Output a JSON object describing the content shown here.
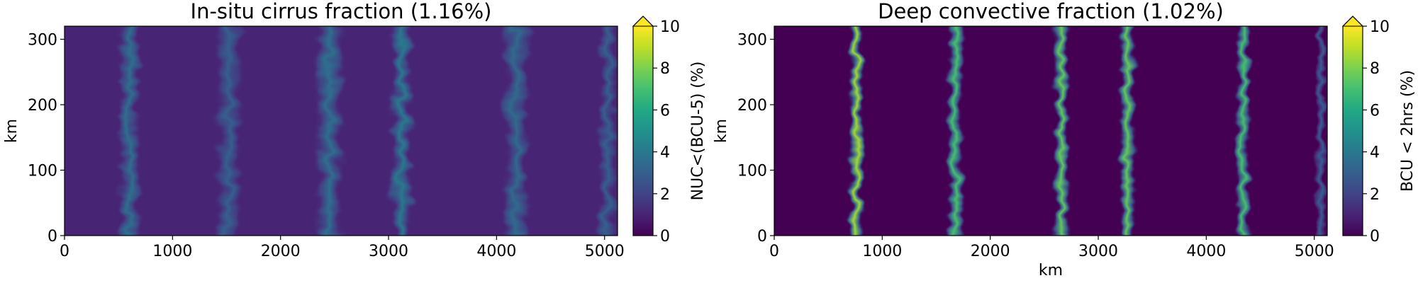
{
  "figure": {
    "name": "two-panel heatmap figure"
  },
  "chart_data": [
    {
      "type": "heatmap",
      "title": "In-situ cirrus fraction (1.16%)",
      "xlabel": "",
      "ylabel": "km",
      "xlim": [
        0,
        5120
      ],
      "ylim": [
        0,
        320
      ],
      "x_ticks": [
        0,
        1000,
        2000,
        3000,
        4000,
        5000
      ],
      "y_ticks": [
        0,
        100,
        200,
        300
      ],
      "x_tick_labels": [
        "0",
        "1000",
        "2000",
        "3000",
        "4000",
        "5000"
      ],
      "y_tick_labels": [
        "0",
        "100",
        "200",
        "300"
      ],
      "colormap": "viridis",
      "colorbar": {
        "label": "NUC<(BCU-5) (%)",
        "range": [
          0,
          10
        ],
        "extend": "max",
        "ticks": [
          0,
          2,
          4,
          6,
          8,
          10
        ],
        "tick_labels": [
          "0",
          "2",
          "4",
          "6",
          "8",
          "10"
        ]
      },
      "background_value": 1.0,
      "bands": [
        {
          "x_center": 600,
          "width": 110,
          "peak": 3.6
        },
        {
          "x_center": 1520,
          "width": 130,
          "peak": 3.0
        },
        {
          "x_center": 2450,
          "width": 140,
          "peak": 3.6
        },
        {
          "x_center": 3120,
          "width": 110,
          "peak": 4.0
        },
        {
          "x_center": 4180,
          "width": 130,
          "peak": 3.4
        },
        {
          "x_center": 5030,
          "width": 90,
          "peak": 3.0
        }
      ]
    },
    {
      "type": "heatmap",
      "title": "Deep convective fraction (1.02%)",
      "xlabel": "km",
      "ylabel": "km",
      "xlim": [
        0,
        5120
      ],
      "ylim": [
        0,
        320
      ],
      "x_ticks": [
        0,
        1000,
        2000,
        3000,
        4000,
        5000
      ],
      "y_ticks": [
        0,
        100,
        200,
        300
      ],
      "x_tick_labels": [
        "0",
        "1000",
        "2000",
        "3000",
        "4000",
        "5000"
      ],
      "y_tick_labels": [
        "0",
        "100",
        "200",
        "300"
      ],
      "colormap": "viridis",
      "colorbar": {
        "label": "BCU < 2hrs (%)",
        "range": [
          0,
          10
        ],
        "extend": "max",
        "ticks": [
          0,
          2,
          4,
          6,
          8,
          10
        ],
        "tick_labels": [
          "0",
          "2",
          "4",
          "6",
          "8",
          "10"
        ]
      },
      "background_value": 0.0,
      "bands": [
        {
          "x_center": 760,
          "width": 70,
          "peak": 8.5
        },
        {
          "x_center": 1680,
          "width": 80,
          "peak": 7.0
        },
        {
          "x_center": 2660,
          "width": 75,
          "peak": 7.5
        },
        {
          "x_center": 3270,
          "width": 75,
          "peak": 7.5
        },
        {
          "x_center": 4340,
          "width": 70,
          "peak": 7.0
        },
        {
          "x_center": 5060,
          "width": 50,
          "peak": 3.0
        }
      ]
    }
  ]
}
